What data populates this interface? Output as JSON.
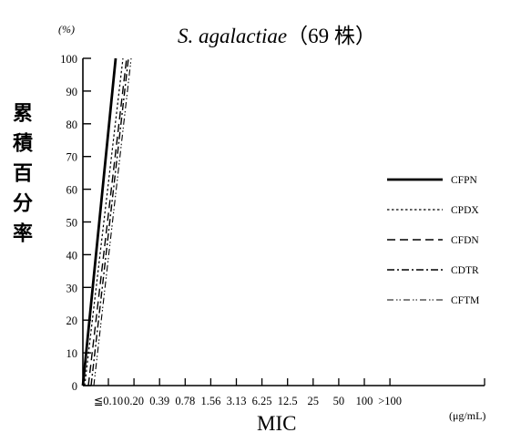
{
  "chart_data": {
    "type": "line",
    "title_italic": "S. agalactiae",
    "title_rest": "（69 株）",
    "y_unit": "(%)",
    "ylabel": "累積百分率",
    "xlabel": "MIC",
    "x_unit": "(μg/mL)",
    "categories": [
      "≦0.10",
      "0.20",
      "0.39",
      "0.78",
      "1.56",
      "3.13",
      "6.25",
      "12.5",
      "25",
      "50",
      "100",
      ">100"
    ],
    "y_ticks": [
      0,
      10,
      20,
      30,
      40,
      50,
      60,
      70,
      80,
      90,
      100
    ],
    "ylim": [
      0,
      100
    ],
    "legend_position": "right",
    "series": [
      {
        "name": "CFPN",
        "dash": "solid",
        "values": [
          100,
          100,
          100,
          100,
          100,
          100,
          100,
          100,
          100,
          100,
          100,
          100
        ]
      },
      {
        "name": "CPDX",
        "dash": "dotted",
        "values": [
          100,
          100,
          100,
          100,
          100,
          100,
          100,
          100,
          100,
          100,
          100,
          100
        ]
      },
      {
        "name": "CFDN",
        "dash": "dashed",
        "values": [
          100,
          100,
          100,
          100,
          100,
          100,
          100,
          100,
          100,
          100,
          100,
          100
        ]
      },
      {
        "name": "CDTR",
        "dash": "dashdot",
        "values": [
          100,
          100,
          100,
          100,
          100,
          100,
          100,
          100,
          100,
          100,
          100,
          100
        ]
      },
      {
        "name": "CFTM",
        "dash": "dashdotdot",
        "values": [
          100,
          100,
          100,
          100,
          100,
          100,
          100,
          100,
          100,
          100,
          100,
          100
        ]
      }
    ]
  }
}
